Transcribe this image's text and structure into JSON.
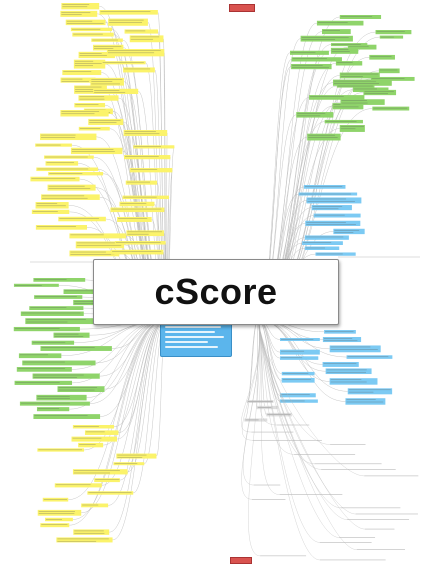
{
  "banner": {
    "title": "cScore"
  },
  "colors": {
    "yellow": "#fbf36a",
    "green": "#8fd46a",
    "blue": "#7ccaf3",
    "gray": "#dedede",
    "red": "#d9534f",
    "edge": "#b9b9b9",
    "text": "#555555"
  }
}
